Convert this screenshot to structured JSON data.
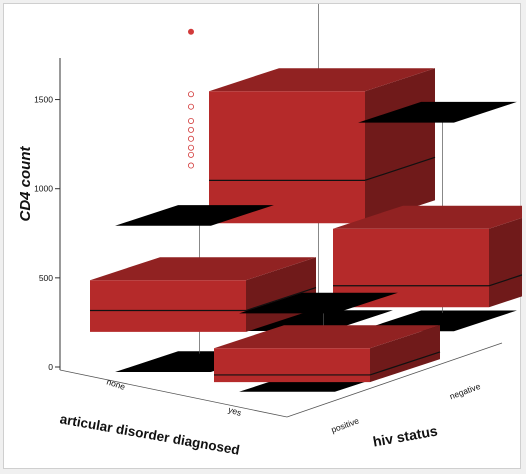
{
  "chart_data": {
    "type": "box3d",
    "ylabel": "CD4 count",
    "xlabel": "articular disorder diagnosed",
    "zlabel": "hiv status",
    "yticks": [
      0,
      500,
      1000,
      1500
    ],
    "ylim": [
      -80,
      1750
    ],
    "x_categories": [
      "none",
      "yes"
    ],
    "z_categories": [
      "positive",
      "negative"
    ],
    "box_color": "#b52a2a",
    "whisker_cap_color": "#000000",
    "outlier_color": "#d23a3a",
    "boxes": [
      {
        "x": "none",
        "z": "positive",
        "min": 0,
        "q1": 180,
        "median": 300,
        "q3": 470,
        "max": 820,
        "outliers": []
      },
      {
        "x": "yes",
        "z": "positive",
        "min": 0,
        "q1": 10,
        "median": 50,
        "q3": 200,
        "max": 440,
        "outliers": []
      },
      {
        "x": "none",
        "z": "negative",
        "min": 0,
        "q1": 560,
        "median": 800,
        "q3": 1300,
        "max": 1980,
        "outliers": [
          900,
          960,
          1000,
          1050,
          1100,
          1150,
          1230,
          1300,
          1650
        ]
      },
      {
        "x": "yes",
        "z": "negative",
        "min": 110,
        "q1": 200,
        "median": 320,
        "q3": 640,
        "max": 1280,
        "outliers": []
      }
    ]
  }
}
